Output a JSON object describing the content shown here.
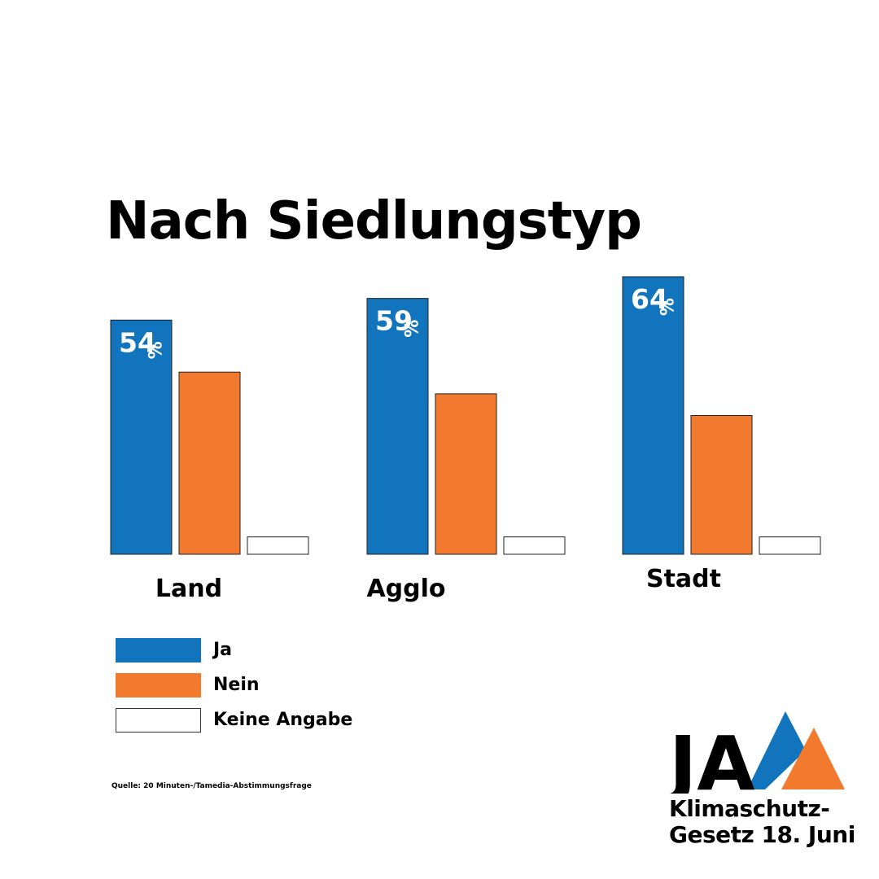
{
  "colors": {
    "ja": "#1174bc",
    "nein": "#f27a2e",
    "keine": "#ffffff",
    "text": "#000000"
  },
  "chart_data": {
    "type": "bar",
    "title": "Nach Siedlungstyp",
    "categories": [
      "Land",
      "Agglo",
      "Stadt"
    ],
    "series": [
      {
        "name": "Ja",
        "values": [
          54,
          59,
          64
        ],
        "labels": [
          "54",
          "59",
          "64"
        ]
      },
      {
        "name": "Nein",
        "values": [
          42,
          37,
          32
        ]
      },
      {
        "name": "Keine Angabe",
        "values": [
          4,
          4,
          4
        ]
      }
    ],
    "percent_sign": "%",
    "ylim": [
      0,
      64
    ],
    "legend_position": "bottom-left",
    "source": "Quelle: 20 Minuten-/Tamedia-Abstimmungsfrage"
  },
  "logo": {
    "mark": "JA",
    "line1": "Klimaschutz-",
    "line2": "Gesetz 18. Juni"
  }
}
